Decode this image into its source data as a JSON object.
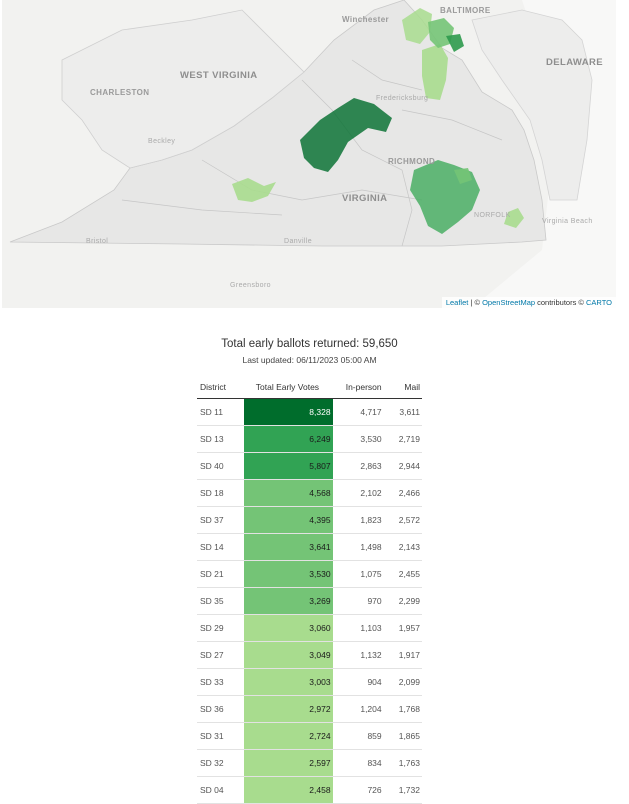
{
  "map": {
    "labels": {
      "winchester": "Winchester",
      "baltimore": "BALTIMORE",
      "delaware": "DELAWARE",
      "charleston": "CHARLESTON",
      "west_virginia": "WEST VIRGINIA",
      "beckley": "Beckley",
      "fredericksburg": "Fredericksburg",
      "richmond": "RICHMOND",
      "virginia": "VIRGINIA",
      "norfolk": "NORFOLK",
      "virginia_beach": "Virginia Beach",
      "bristol": "Bristol",
      "danville": "Danville",
      "greensboro": "Greensboro"
    },
    "attribution": {
      "leaflet": "Leaflet",
      "sep1": " | © ",
      "osm": "OpenStreetMap",
      "contributors": " contributors © ",
      "carto": "CARTO"
    },
    "colors": {
      "land": "#ececec",
      "water": "#f7f7f6",
      "border": "#c8c8c8",
      "high": "#006d2c",
      "mid_high": "#2d9a4c",
      "mid": "#73c476",
      "low": "#a8dc8e"
    }
  },
  "summary": {
    "total_label": "Total early ballots returned: 59,650",
    "updated_label": "Last updated: 06/11/2023 05:00 AM"
  },
  "table": {
    "headers": {
      "district": "District",
      "total": "Total Early Votes",
      "in_person": "In-person",
      "mail": "Mail"
    },
    "rows": [
      {
        "district": "SD 11",
        "total": "8,328",
        "in_person": "4,717",
        "mail": "3,611",
        "color": "#006d2c",
        "dark": true
      },
      {
        "district": "SD 13",
        "total": "6,249",
        "in_person": "3,530",
        "mail": "2,719",
        "color": "#31a354",
        "dark": false
      },
      {
        "district": "SD 40",
        "total": "5,807",
        "in_person": "2,863",
        "mail": "2,944",
        "color": "#31a354",
        "dark": false
      },
      {
        "district": "SD 18",
        "total": "4,568",
        "in_person": "2,102",
        "mail": "2,466",
        "color": "#74c476",
        "dark": false
      },
      {
        "district": "SD 37",
        "total": "4,395",
        "in_person": "1,823",
        "mail": "2,572",
        "color": "#74c476",
        "dark": false
      },
      {
        "district": "SD 14",
        "total": "3,641",
        "in_person": "1,498",
        "mail": "2,143",
        "color": "#74c476",
        "dark": false
      },
      {
        "district": "SD 21",
        "total": "3,530",
        "in_person": "1,075",
        "mail": "2,455",
        "color": "#74c476",
        "dark": false
      },
      {
        "district": "SD 35",
        "total": "3,269",
        "in_person": "970",
        "mail": "2,299",
        "color": "#74c476",
        "dark": false
      },
      {
        "district": "SD 29",
        "total": "3,060",
        "in_person": "1,103",
        "mail": "1,957",
        "color": "#a8dc8e",
        "dark": false
      },
      {
        "district": "SD 27",
        "total": "3,049",
        "in_person": "1,132",
        "mail": "1,917",
        "color": "#a8dc8e",
        "dark": false
      },
      {
        "district": "SD 33",
        "total": "3,003",
        "in_person": "904",
        "mail": "2,099",
        "color": "#a8dc8e",
        "dark": false
      },
      {
        "district": "SD 36",
        "total": "2,972",
        "in_person": "1,204",
        "mail": "1,768",
        "color": "#a8dc8e",
        "dark": false
      },
      {
        "district": "SD 31",
        "total": "2,724",
        "in_person": "859",
        "mail": "1,865",
        "color": "#a8dc8e",
        "dark": false
      },
      {
        "district": "SD 32",
        "total": "2,597",
        "in_person": "834",
        "mail": "1,763",
        "color": "#a8dc8e",
        "dark": false
      },
      {
        "district": "SD 04",
        "total": "2,458",
        "in_person": "726",
        "mail": "1,732",
        "color": "#a8dc8e",
        "dark": false
      }
    ]
  }
}
